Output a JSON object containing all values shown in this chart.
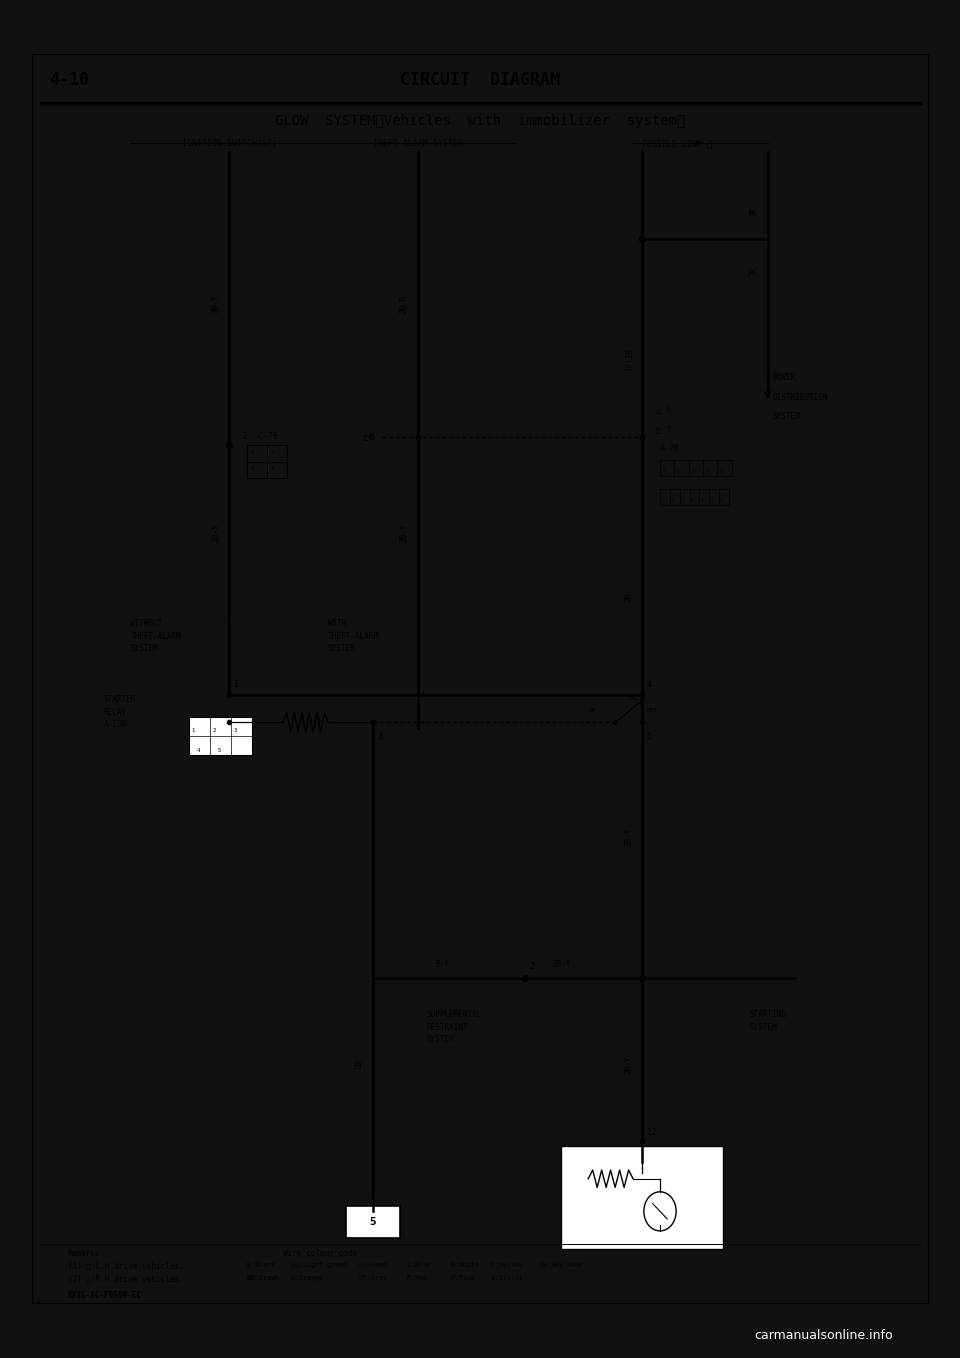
{
  "bg_color": "#ffffff",
  "outer_bg": "#111111",
  "page_num": "4-10",
  "header_title": "CIRCUIT  DIAGRAM",
  "diagram_title": "GLOW  SYSTEM〈Vehicles  with  immobilizer  system〉",
  "bottom_text": "carmanualsonline.info",
  "footer_code": "KX35-AC-F0509-EC",
  "remarks": [
    "Remarks",
    "(1) □:L.H.drive vehicles.",
    "(2) △:R.H.drive vehicles."
  ],
  "wire_colour_label": "Wire colour code",
  "wire_colour_line1": "B:Black    LG:Light green   G:Green     L:Blue     W:White   Y:Yellow    SB:Sky blue",
  "wire_colour_line2": "BR:Brown   O:Orange         GR:Gray     R:Red      P:Pink    V:Violet",
  "col_labels": [
    "IGNITION SWITCH(ST)",
    "THEFT-ALARM SYSTEM",
    "FUSIBLE LINK ③"
  ]
}
